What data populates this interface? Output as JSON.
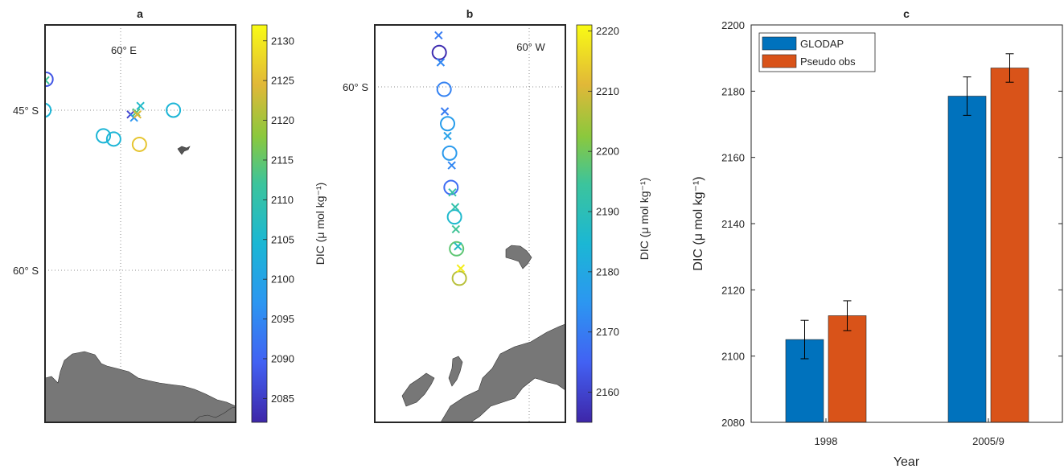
{
  "chart_data": [
    {
      "type": "scatter",
      "title": "a",
      "map_labels": {
        "meridian": "60° E",
        "lat1": "45° S",
        "lat2": "60° S"
      },
      "colorbar": {
        "label": "DIC (μ mol kg⁻¹)",
        "range": [
          2082,
          2132
        ],
        "ticks": [
          "2085",
          "2090",
          "2095",
          "2100",
          "2105",
          "2110",
          "2115",
          "2120",
          "2125",
          "2130"
        ]
      },
      "series": [
        {
          "marker": "circle",
          "points": [
            {
              "lon": 31,
              "lat": -42.1,
              "value": 2088
            },
            {
              "lon": 30.2,
              "lat": -45,
              "value": 2104
            },
            {
              "lon": 80.5,
              "lat": -45,
              "value": 2104
            },
            {
              "lon": 53.3,
              "lat": -47.4,
              "value": 2104
            },
            {
              "lon": 57.3,
              "lat": -47.7,
              "value": 2104
            },
            {
              "lon": 67.3,
              "lat": -48.2,
              "value": 2126
            }
          ]
        },
        {
          "marker": "cross",
          "points": [
            {
              "lon": 30.8,
              "lat": -42.2,
              "value": 2112
            },
            {
              "lon": 63.9,
              "lat": -45.4,
              "value": 2086
            },
            {
              "lon": 65.2,
              "lat": -45.7,
              "value": 2097
            },
            {
              "lon": 66.1,
              "lat": -45.2,
              "value": 2114
            },
            {
              "lon": 66.5,
              "lat": -45.4,
              "value": 2124
            },
            {
              "lon": 67.7,
              "lat": -44.6,
              "value": 2106
            }
          ]
        }
      ]
    },
    {
      "type": "scatter",
      "title": "b",
      "map_labels": {
        "meridian": "60° W",
        "lat1": "60° S"
      },
      "colorbar": {
        "label": "DIC (μ mol kg⁻¹)",
        "range": [
          2155,
          2221
        ],
        "ticks": [
          "2160",
          "2170",
          "2180",
          "2190",
          "2200",
          "2210",
          "2220"
        ]
      },
      "series": [
        {
          "marker": "circle",
          "points": [
            {
              "lon": -73,
              "lat": -58.6,
              "value": 2156
            },
            {
              "lon": -72.3,
              "lat": -60.1,
              "value": 2171
            },
            {
              "lon": -71.8,
              "lat": -61.5,
              "value": 2177
            },
            {
              "lon": -71.5,
              "lat": -62.7,
              "value": 2176
            },
            {
              "lon": -71.3,
              "lat": -64.1,
              "value": 2167
            },
            {
              "lon": -70.8,
              "lat": -65.3,
              "value": 2186
            },
            {
              "lon": -70.5,
              "lat": -66.6,
              "value": 2198
            },
            {
              "lon": -70.1,
              "lat": -67.8,
              "value": 2207
            }
          ]
        },
        {
          "marker": "cross",
          "points": [
            {
              "lon": -73.1,
              "lat": -57.9,
              "value": 2170
            },
            {
              "lon": -72.8,
              "lat": -59,
              "value": 2172
            },
            {
              "lon": -72.2,
              "lat": -61,
              "value": 2170
            },
            {
              "lon": -71.8,
              "lat": -62,
              "value": 2178
            },
            {
              "lon": -71.2,
              "lat": -63.2,
              "value": 2172
            },
            {
              "lon": -71.1,
              "lat": -64.3,
              "value": 2193
            },
            {
              "lon": -70.7,
              "lat": -64.9,
              "value": 2192
            },
            {
              "lon": -70.6,
              "lat": -65.8,
              "value": 2195
            },
            {
              "lon": -70.3,
              "lat": -66.5,
              "value": 2188
            },
            {
              "lon": -69.9,
              "lat": -67.4,
              "value": 2219
            }
          ]
        }
      ]
    },
    {
      "type": "bar",
      "title": "c",
      "categories": [
        "1998",
        "2005/9"
      ],
      "xlabel": "Year",
      "ylabel": "DIC (μ mol kg⁻¹)",
      "ylim": [
        2080,
        2200
      ],
      "yticks": [
        "2080",
        "2100",
        "2120",
        "2140",
        "2160",
        "2180",
        "2200"
      ],
      "legend_position": "top-left",
      "series": [
        {
          "name": "GLODAP",
          "color": "#0072bd",
          "values": [
            2105,
            2178.5
          ],
          "errors": [
            5.8,
            5.8
          ]
        },
        {
          "name": "Pseudo obs",
          "color": "#d95319",
          "values": [
            2112.2,
            2187
          ],
          "errors": [
            4.5,
            4.3
          ]
        }
      ]
    }
  ]
}
